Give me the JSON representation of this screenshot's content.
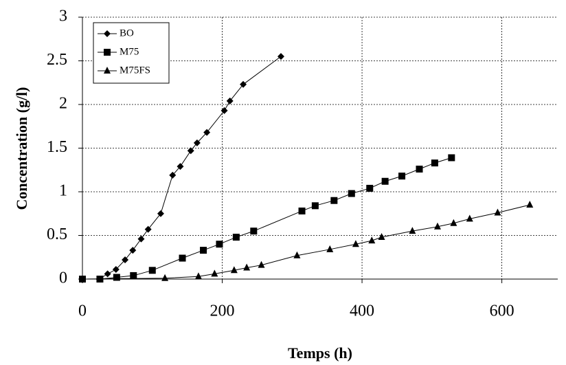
{
  "chart_data": {
    "type": "line",
    "x_label": "Temps (h)",
    "y_label": "Concentration (g/l)",
    "xlim": [
      0,
      680
    ],
    "xticks": [
      0,
      200,
      400,
      600
    ],
    "ylim": [
      0,
      3
    ],
    "yticks": [
      0,
      0.5,
      1,
      1.5,
      2,
      2.5,
      3
    ],
    "grid": true,
    "legend": "top-left",
    "series": [
      {
        "name": "BO",
        "color": "#000000",
        "marker": "diamond",
        "x": [
          0,
          24,
          36,
          48,
          61,
          72,
          84,
          94,
          112,
          129,
          140,
          155,
          164,
          178,
          203,
          211,
          230,
          284
        ],
        "values": [
          0,
          0,
          0.06,
          0.11,
          0.22,
          0.33,
          0.46,
          0.57,
          0.75,
          1.19,
          1.29,
          1.47,
          1.56,
          1.68,
          1.93,
          2.04,
          2.23,
          2.55
        ]
      },
      {
        "name": "M75",
        "color": "#000000",
        "marker": "square",
        "x": [
          0,
          25,
          49,
          73,
          100,
          143,
          173,
          196,
          220,
          245,
          314,
          333,
          360,
          385,
          411,
          433,
          457,
          482,
          504,
          528
        ],
        "values": [
          0,
          0,
          0.02,
          0.04,
          0.1,
          0.24,
          0.33,
          0.4,
          0.48,
          0.55,
          0.78,
          0.84,
          0.9,
          0.98,
          1.04,
          1.12,
          1.18,
          1.26,
          1.33,
          1.39
        ]
      },
      {
        "name": "M75FS",
        "color": "#000000",
        "marker": "triangle",
        "x": [
          0,
          118,
          166,
          189,
          217,
          235,
          256,
          307,
          354,
          391,
          414,
          428,
          472,
          508,
          531,
          554,
          594,
          640
        ],
        "values": [
          0,
          0.01,
          0.03,
          0.06,
          0.1,
          0.13,
          0.16,
          0.27,
          0.34,
          0.4,
          0.44,
          0.48,
          0.55,
          0.6,
          0.64,
          0.69,
          0.76,
          0.85
        ]
      }
    ]
  }
}
